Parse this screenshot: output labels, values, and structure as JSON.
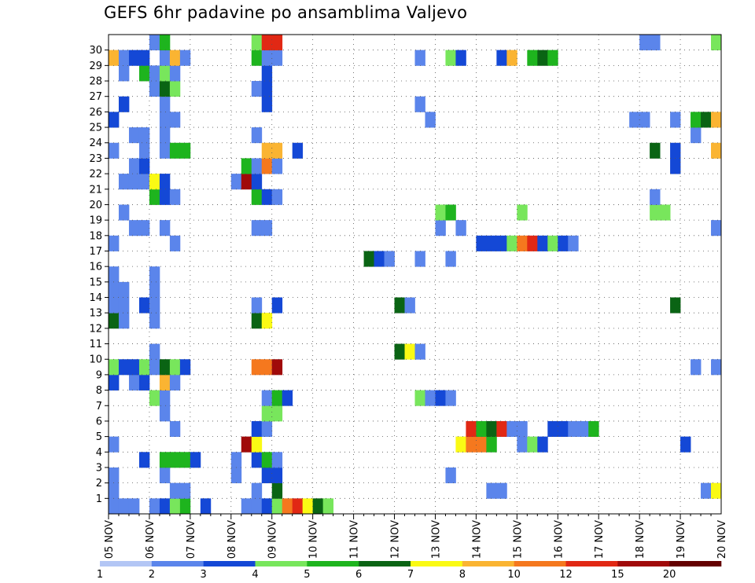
{
  "title": "GEFS 6hr padavine po ansamblima Valjevo",
  "chart_data": {
    "type": "heatmap",
    "title": "GEFS 6hr padavine po ansamblima Valjevo",
    "x_ticks": [
      "05 NOV",
      "06 NOV",
      "07 NOV",
      "08 NOV",
      "09 NOV",
      "10 NOV",
      "11 NOV",
      "12 NOV",
      "13 NOV",
      "14 NOV",
      "15 NOV",
      "16 NOV",
      "17 NOV",
      "18 NOV",
      "19 NOV",
      "20 NOV"
    ],
    "y_ticks": [
      "1",
      "2",
      "3",
      "4",
      "5",
      "6",
      "7",
      "8",
      "9",
      "10",
      "11",
      "12",
      "13",
      "14",
      "15",
      "16",
      "17",
      "18",
      "19",
      "20",
      "21",
      "22",
      "23",
      "24",
      "25",
      "26",
      "27",
      "28",
      "29",
      "30"
    ],
    "x_unit": "6-hour step from 05 NOV 00Z",
    "y_unit": "ensemble member",
    "grid": true,
    "colorbar": {
      "labels": [
        "1",
        "2",
        "3",
        "4",
        "5",
        "6",
        "7",
        "8",
        "10",
        "12",
        "15",
        "20"
      ],
      "colors": [
        "#b3c6f5",
        "#5b85eb",
        "#1448d6",
        "#78e65c",
        "#1eb41e",
        "#0a6414",
        "#fafa14",
        "#fab432",
        "#f5781e",
        "#e12814",
        "#a00a0a",
        "#640000"
      ]
    },
    "cells": [
      [
        0,
        0,
        1
      ],
      [
        1,
        0,
        1
      ],
      [
        2,
        0,
        1
      ],
      [
        4,
        0,
        1
      ],
      [
        5,
        0,
        2
      ],
      [
        6,
        0,
        3
      ],
      [
        7,
        0,
        4
      ],
      [
        9,
        0,
        2
      ],
      [
        13,
        0,
        1
      ],
      [
        14,
        0,
        1
      ],
      [
        15,
        0,
        2
      ],
      [
        16,
        0,
        3
      ],
      [
        17,
        0,
        8
      ],
      [
        18,
        0,
        9
      ],
      [
        19,
        0,
        6
      ],
      [
        20,
        0,
        5
      ],
      [
        21,
        0,
        3
      ],
      [
        0,
        1,
        1
      ],
      [
        6,
        1,
        1
      ],
      [
        7,
        1,
        1
      ],
      [
        14,
        1,
        1
      ],
      [
        16,
        1,
        5
      ],
      [
        37,
        1,
        1
      ],
      [
        38,
        1,
        1
      ],
      [
        58,
        1,
        1
      ],
      [
        59,
        1,
        6
      ],
      [
        0,
        2,
        1
      ],
      [
        5,
        2,
        1
      ],
      [
        12,
        2,
        1
      ],
      [
        15,
        2,
        2
      ],
      [
        16,
        2,
        2
      ],
      [
        33,
        2,
        1
      ],
      [
        3,
        3,
        2
      ],
      [
        5,
        3,
        4
      ],
      [
        6,
        3,
        4
      ],
      [
        7,
        3,
        4
      ],
      [
        8,
        3,
        2
      ],
      [
        12,
        3,
        1
      ],
      [
        14,
        3,
        2
      ],
      [
        15,
        3,
        4
      ],
      [
        16,
        3,
        1
      ],
      [
        0,
        4,
        1
      ],
      [
        13,
        4,
        10
      ],
      [
        14,
        4,
        6
      ],
      [
        34,
        4,
        6
      ],
      [
        35,
        4,
        8
      ],
      [
        36,
        4,
        8
      ],
      [
        37,
        4,
        4
      ],
      [
        40,
        4,
        1
      ],
      [
        41,
        4,
        3
      ],
      [
        42,
        4,
        2
      ],
      [
        56,
        4,
        2
      ],
      [
        6,
        5,
        1
      ],
      [
        14,
        5,
        2
      ],
      [
        15,
        5,
        1
      ],
      [
        35,
        5,
        9
      ],
      [
        36,
        5,
        4
      ],
      [
        37,
        5,
        5
      ],
      [
        38,
        5,
        9
      ],
      [
        39,
        5,
        1
      ],
      [
        40,
        5,
        1
      ],
      [
        43,
        5,
        2
      ],
      [
        44,
        5,
        2
      ],
      [
        45,
        5,
        1
      ],
      [
        46,
        5,
        1
      ],
      [
        47,
        5,
        4
      ],
      [
        5,
        6,
        1
      ],
      [
        15,
        6,
        3
      ],
      [
        16,
        6,
        3
      ],
      [
        4,
        7,
        3
      ],
      [
        5,
        7,
        1
      ],
      [
        15,
        7,
        1
      ],
      [
        16,
        7,
        4
      ],
      [
        17,
        7,
        2
      ],
      [
        30,
        7,
        3
      ],
      [
        31,
        7,
        1
      ],
      [
        32,
        7,
        2
      ],
      [
        33,
        7,
        1
      ],
      [
        0,
        8,
        2
      ],
      [
        2,
        8,
        1
      ],
      [
        3,
        8,
        2
      ],
      [
        5,
        8,
        7
      ],
      [
        6,
        8,
        1
      ],
      [
        0,
        9,
        3
      ],
      [
        1,
        9,
        2
      ],
      [
        2,
        9,
        2
      ],
      [
        3,
        9,
        3
      ],
      [
        4,
        9,
        1
      ],
      [
        5,
        9,
        5
      ],
      [
        6,
        9,
        3
      ],
      [
        7,
        9,
        2
      ],
      [
        14,
        9,
        8
      ],
      [
        15,
        9,
        8
      ],
      [
        16,
        9,
        10
      ],
      [
        57,
        9,
        1
      ],
      [
        59,
        9,
        1
      ],
      [
        4,
        10,
        1
      ],
      [
        28,
        10,
        5
      ],
      [
        29,
        10,
        6
      ],
      [
        30,
        10,
        1
      ],
      [
        0,
        12,
        5
      ],
      [
        1,
        12,
        1
      ],
      [
        4,
        12,
        1
      ],
      [
        14,
        12,
        5
      ],
      [
        15,
        12,
        6
      ],
      [
        0,
        13,
        1
      ],
      [
        1,
        13,
        1
      ],
      [
        3,
        13,
        2
      ],
      [
        4,
        13,
        1
      ],
      [
        14,
        13,
        1
      ],
      [
        16,
        13,
        2
      ],
      [
        28,
        13,
        5
      ],
      [
        29,
        13,
        1
      ],
      [
        55,
        13,
        5
      ],
      [
        0,
        14,
        1
      ],
      [
        1,
        14,
        1
      ],
      [
        4,
        14,
        1
      ],
      [
        0,
        15,
        1
      ],
      [
        4,
        15,
        1
      ],
      [
        25,
        16,
        5
      ],
      [
        26,
        16,
        2
      ],
      [
        27,
        16,
        1
      ],
      [
        30,
        16,
        1
      ],
      [
        33,
        16,
        1
      ],
      [
        0,
        17,
        1
      ],
      [
        6,
        17,
        1
      ],
      [
        36,
        17,
        2
      ],
      [
        37,
        17,
        2
      ],
      [
        38,
        17,
        2
      ],
      [
        39,
        17,
        3
      ],
      [
        40,
        17,
        8
      ],
      [
        41,
        17,
        9
      ],
      [
        42,
        17,
        2
      ],
      [
        43,
        17,
        3
      ],
      [
        44,
        17,
        2
      ],
      [
        45,
        17,
        1
      ],
      [
        2,
        18,
        1
      ],
      [
        3,
        18,
        1
      ],
      [
        5,
        18,
        1
      ],
      [
        14,
        18,
        1
      ],
      [
        15,
        18,
        1
      ],
      [
        32,
        18,
        1
      ],
      [
        34,
        18,
        1
      ],
      [
        59,
        18,
        1
      ],
      [
        1,
        19,
        1
      ],
      [
        32,
        19,
        3
      ],
      [
        33,
        19,
        4
      ],
      [
        40,
        19,
        3
      ],
      [
        53,
        19,
        3
      ],
      [
        54,
        19,
        3
      ],
      [
        4,
        20,
        4
      ],
      [
        5,
        20,
        2
      ],
      [
        6,
        20,
        1
      ],
      [
        14,
        20,
        4
      ],
      [
        15,
        20,
        2
      ],
      [
        16,
        20,
        1
      ],
      [
        53,
        20,
        1
      ],
      [
        1,
        21,
        1
      ],
      [
        2,
        21,
        1
      ],
      [
        3,
        21,
        1
      ],
      [
        4,
        21,
        6
      ],
      [
        5,
        21,
        2
      ],
      [
        12,
        21,
        1
      ],
      [
        13,
        21,
        10
      ],
      [
        14,
        21,
        2
      ],
      [
        2,
        22,
        1
      ],
      [
        3,
        22,
        2
      ],
      [
        13,
        22,
        4
      ],
      [
        14,
        22,
        1
      ],
      [
        15,
        22,
        8
      ],
      [
        16,
        22,
        1
      ],
      [
        55,
        22,
        2
      ],
      [
        0,
        23,
        1
      ],
      [
        3,
        23,
        1
      ],
      [
        5,
        23,
        1
      ],
      [
        6,
        23,
        4
      ],
      [
        7,
        23,
        4
      ],
      [
        15,
        23,
        7
      ],
      [
        16,
        23,
        7
      ],
      [
        18,
        23,
        2
      ],
      [
        53,
        23,
        5
      ],
      [
        55,
        23,
        2
      ],
      [
        59,
        23,
        7
      ],
      [
        2,
        24,
        1
      ],
      [
        3,
        24,
        1
      ],
      [
        5,
        24,
        1
      ],
      [
        14,
        24,
        1
      ],
      [
        57,
        24,
        1
      ],
      [
        0,
        25,
        2
      ],
      [
        5,
        25,
        1
      ],
      [
        6,
        25,
        1
      ],
      [
        31,
        25,
        1
      ],
      [
        51,
        25,
        1
      ],
      [
        52,
        25,
        1
      ],
      [
        55,
        25,
        1
      ],
      [
        57,
        25,
        4
      ],
      [
        58,
        25,
        5
      ],
      [
        59,
        25,
        7
      ],
      [
        1,
        26,
        2
      ],
      [
        5,
        26,
        1
      ],
      [
        15,
        26,
        2
      ],
      [
        30,
        26,
        1
      ],
      [
        4,
        27,
        1
      ],
      [
        5,
        27,
        5
      ],
      [
        6,
        27,
        3
      ],
      [
        14,
        27,
        1
      ],
      [
        15,
        27,
        2
      ],
      [
        1,
        28,
        1
      ],
      [
        3,
        28,
        4
      ],
      [
        4,
        28,
        1
      ],
      [
        5,
        28,
        3
      ],
      [
        6,
        28,
        1
      ],
      [
        15,
        28,
        2
      ],
      [
        0,
        29,
        7
      ],
      [
        1,
        29,
        1
      ],
      [
        2,
        29,
        2
      ],
      [
        3,
        29,
        2
      ],
      [
        5,
        29,
        1
      ],
      [
        6,
        29,
        7
      ],
      [
        7,
        29,
        1
      ],
      [
        14,
        29,
        4
      ],
      [
        15,
        29,
        1
      ],
      [
        16,
        29,
        1
      ],
      [
        30,
        29,
        1
      ],
      [
        33,
        29,
        3
      ],
      [
        34,
        29,
        2
      ],
      [
        38,
        29,
        2
      ],
      [
        39,
        29,
        7
      ],
      [
        41,
        29,
        4
      ],
      [
        42,
        29,
        5
      ],
      [
        43,
        29,
        4
      ],
      [
        4,
        30,
        1
      ],
      [
        5,
        30,
        4
      ],
      [
        14,
        30,
        3
      ],
      [
        15,
        30,
        9
      ],
      [
        16,
        30,
        9
      ],
      [
        52,
        30,
        1
      ],
      [
        53,
        30,
        1
      ],
      [
        59,
        30,
        3
      ]
    ]
  }
}
